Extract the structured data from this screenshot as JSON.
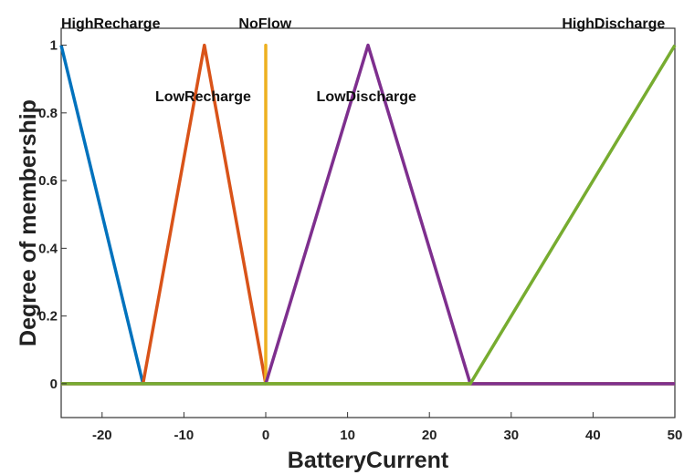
{
  "chart_data": {
    "type": "line",
    "xlabel": "BatteryCurrent",
    "ylabel": "Degree of membership",
    "xlim": [
      -25,
      50
    ],
    "ylim": [
      -0.1,
      1.05
    ],
    "xticks": [
      -20,
      -10,
      0,
      10,
      20,
      30,
      40,
      50
    ],
    "yticks": [
      0,
      0.2,
      0.4,
      0.6,
      0.8,
      1
    ],
    "ytick_labels": [
      "0",
      "0.2",
      "0.4",
      "0.6",
      "0.8",
      "1"
    ],
    "grid": false,
    "series": [
      {
        "name": "HighRecharge",
        "color": "#0072BD",
        "points": [
          [
            -25,
            1
          ],
          [
            -15,
            0
          ],
          [
            50,
            0
          ]
        ]
      },
      {
        "name": "LowRecharge",
        "color": "#D95319",
        "points": [
          [
            -25,
            0
          ],
          [
            -15,
            0
          ],
          [
            -7.5,
            1
          ],
          [
            0,
            0
          ],
          [
            50,
            0
          ]
        ]
      },
      {
        "name": "NoFlow",
        "color": "#EDB120",
        "points": [
          [
            -25,
            0
          ],
          [
            0,
            0
          ],
          [
            0,
            1
          ],
          [
            0,
            0
          ],
          [
            50,
            0
          ]
        ]
      },
      {
        "name": "LowDischarge",
        "color": "#7E2F8E",
        "points": [
          [
            -25,
            0
          ],
          [
            0,
            0
          ],
          [
            12.5,
            1
          ],
          [
            25,
            0
          ],
          [
            50,
            0
          ]
        ]
      },
      {
        "name": "HighDischarge",
        "color": "#77AC30",
        "points": [
          [
            -25,
            0
          ],
          [
            25,
            0
          ],
          [
            50,
            1
          ]
        ]
      }
    ],
    "annotations": [
      {
        "text": "HighRecharge",
        "x": -25,
        "y": 1.05
      },
      {
        "text": "LowRecharge",
        "x": -13.5,
        "y": 0.835
      },
      {
        "text": "NoFlow",
        "x": -3.3,
        "y": 1.05
      },
      {
        "text": "LowDischarge",
        "x": 6.2,
        "y": 0.835
      },
      {
        "text": "HighDischarge",
        "x": 36.2,
        "y": 1.05
      }
    ]
  }
}
